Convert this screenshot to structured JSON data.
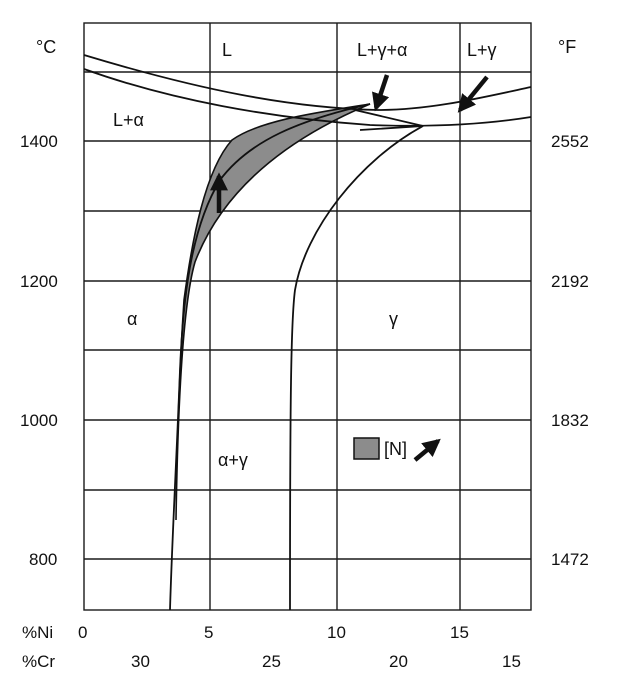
{
  "units": {
    "celsius": "°C",
    "fahrenheit": "°F"
  },
  "axis": {
    "ni_label": "%Ni",
    "cr_label": "%Cr",
    "ni_ticks": [
      "0",
      "5",
      "10",
      "15"
    ],
    "cr_ticks": [
      "30",
      "25",
      "20",
      "15"
    ]
  },
  "temperature_ticks": [
    {
      "c": "1400",
      "f": "2552"
    },
    {
      "c": "1200",
      "f": "2192"
    },
    {
      "c": "1000",
      "f": "1832"
    },
    {
      "c": "800",
      "f": "1472"
    }
  ],
  "regions": {
    "liquid": "L",
    "l_gamma_alpha": "L+γ+α",
    "l_gamma": "L+γ",
    "l_alpha": "L+α",
    "alpha": "α",
    "gamma": "γ",
    "alpha_gamma": "α+γ"
  },
  "legend": {
    "label": "[N]"
  },
  "colors": {
    "shaded_region": "#8c8c8c",
    "lines": "#111111",
    "background": "#ffffff"
  }
}
